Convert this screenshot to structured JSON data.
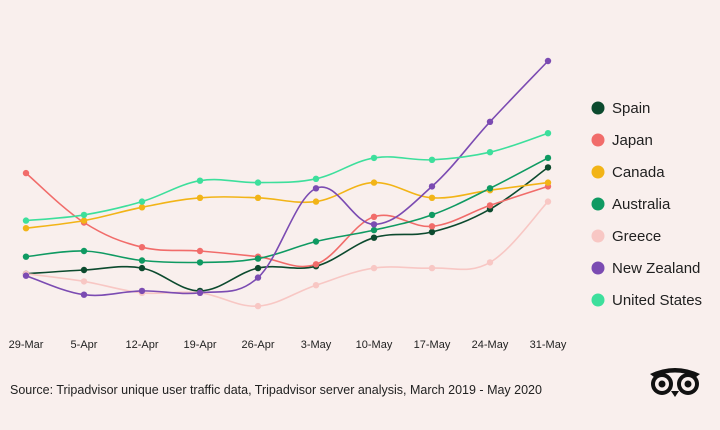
{
  "chart_data": {
    "type": "line",
    "title": "",
    "xlabel": "",
    "ylabel": "",
    "categories": [
      "29-Mar",
      "5-Apr",
      "12-Apr",
      "19-Apr",
      "26-Apr",
      "3-May",
      "10-May",
      "17-May",
      "24-May",
      "31-May"
    ],
    "ylim": [
      0,
      100
    ],
    "grid": false,
    "legend_position": "right",
    "series": [
      {
        "name": "Spain",
        "color": "#0c4a2e",
        "values": [
          18,
          20,
          21,
          9,
          21,
          22,
          37,
          40,
          52,
          74
        ]
      },
      {
        "name": "Japan",
        "color": "#f16c6a",
        "values": [
          71,
          45,
          32,
          30,
          27,
          23,
          48,
          43,
          54,
          64
        ]
      },
      {
        "name": "Canada",
        "color": "#f2b417",
        "values": [
          42,
          46,
          53,
          58,
          58,
          56,
          66,
          58,
          62,
          66
        ]
      },
      {
        "name": "Australia",
        "color": "#0f9a62",
        "values": [
          27,
          30,
          25,
          24,
          26,
          35,
          41,
          49,
          63,
          79
        ]
      },
      {
        "name": "Greece",
        "color": "#f8c7c4",
        "values": [
          18,
          14,
          8,
          8,
          1,
          12,
          21,
          21,
          24,
          56
        ]
      },
      {
        "name": "New Zealand",
        "color": "#7b4bb2",
        "values": [
          17,
          7,
          9,
          8,
          16,
          63,
          44,
          64,
          98,
          130
        ]
      },
      {
        "name": "United States",
        "color": "#3ddf9c",
        "values": [
          46,
          49,
          56,
          67,
          66,
          68,
          79,
          78,
          82,
          92
        ]
      }
    ]
  },
  "source": "Source: Tripadvisor unique user traffic data, Tripadvisor server analysis, March 2019 - May 2020",
  "logo_icon": "tripadvisor-owl-icon"
}
